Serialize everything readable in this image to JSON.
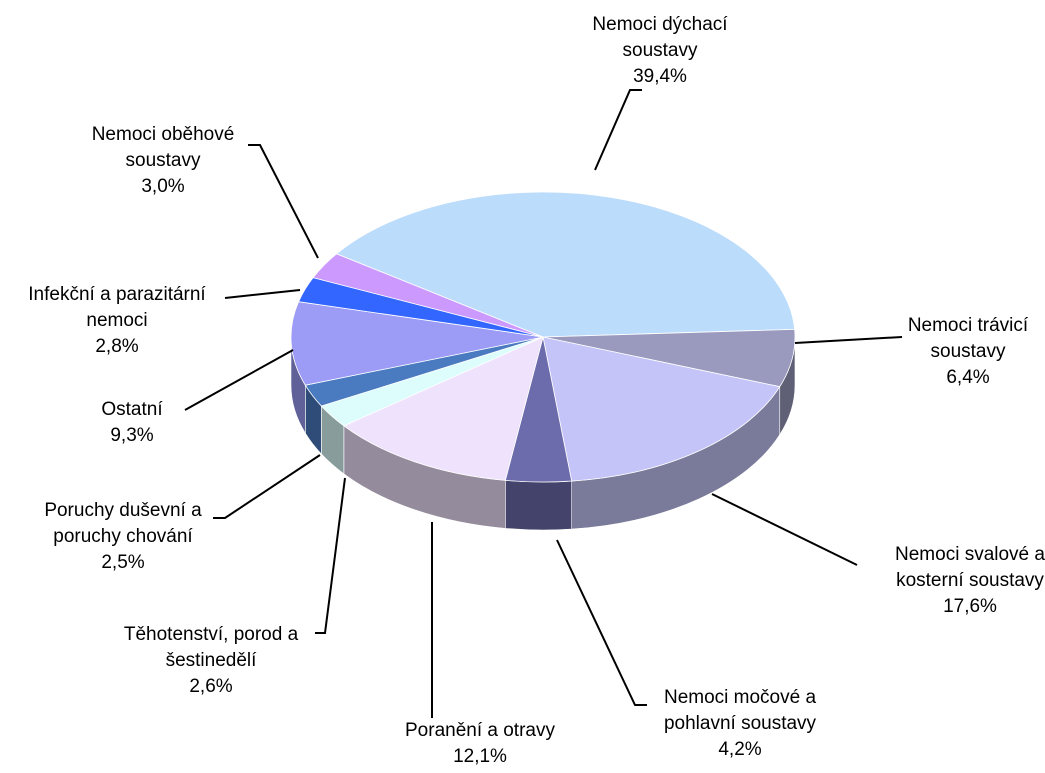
{
  "chart_data": {
    "type": "pie",
    "categories": [
      "Nemoci dýchací soustavy",
      "Nemoci trávicí soustavy",
      "Nemoci svalové a kosterní soustavy",
      "Nemoci močové a pohlavní soustavy",
      "Poranění a otravy",
      "Těhotenství, porod a šestinedělí",
      "Poruchy duševní a poruchy chování",
      "Ostatní",
      "Infekční a parazitární nemoci",
      "Nemoci oběhové soustavy"
    ],
    "values": [
      39.4,
      6.4,
      17.6,
      4.2,
      12.1,
      2.6,
      2.5,
      9.3,
      2.8,
      3.0
    ],
    "value_labels": [
      "39,4%",
      "6,4%",
      "17,6%",
      "4,2%",
      "12,1%",
      "2,6%",
      "2,5%",
      "9,3%",
      "2,8%",
      "3,0%"
    ],
    "colors": [
      "#bcdcfc",
      "#9a9abf",
      "#c4c4f8",
      "#6c6cac",
      "#eee2fc",
      "#ddfcfc",
      "#4a7ac0",
      "#9c9cf6",
      "#3366ff",
      "#cc99ff"
    ]
  }
}
